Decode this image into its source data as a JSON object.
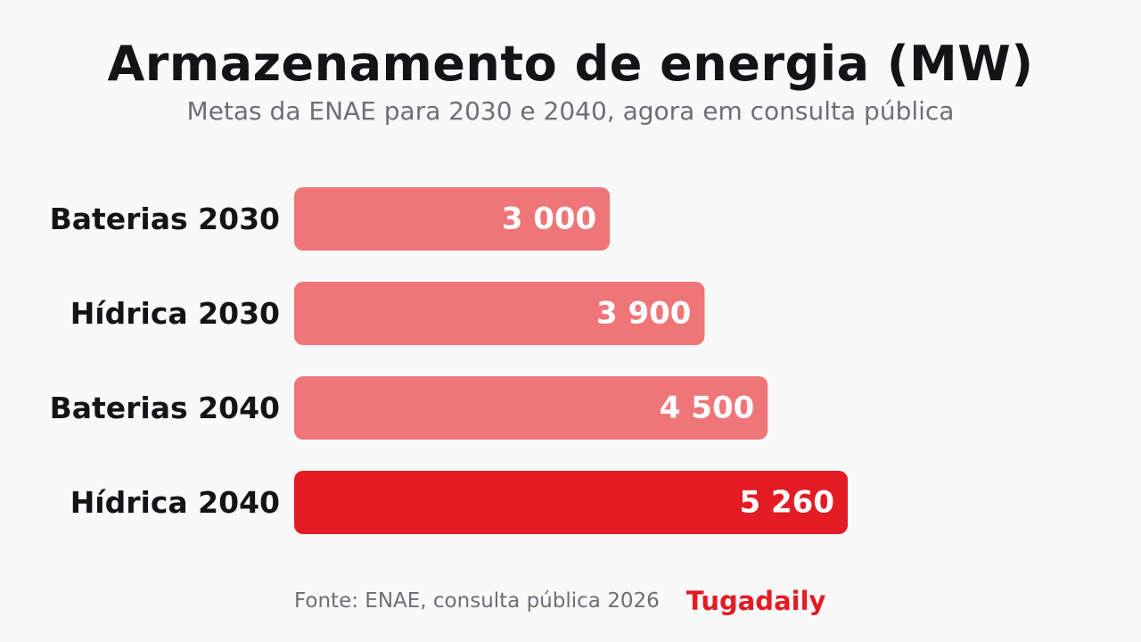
{
  "header": {
    "title": "Armazenamento de energia (MW)",
    "subtitle": "Metas da ENAE para 2030 e 2040, agora em consulta pública"
  },
  "chart_data": {
    "type": "bar",
    "orientation": "horizontal",
    "title": "Armazenamento de energia (MW)",
    "subtitle": "Metas da ENAE para 2030 e 2040, agora em consulta pública",
    "categories": [
      "Baterias 2030",
      "Hídrica 2030",
      "Baterias 2040",
      "Hídrica 2040"
    ],
    "values": [
      3000,
      3900,
      4500,
      5260
    ],
    "value_labels": [
      "3 000",
      "3 900",
      "4 500",
      "5 260"
    ],
    "xlim": [
      0,
      5260
    ],
    "grid": false,
    "legend": "none",
    "highlight_index": 3,
    "colors": {
      "bar": "#ee7679",
      "highlight": "#e31b23",
      "value_label": "#ffffff",
      "category_label": "#141418"
    }
  },
  "footer": {
    "source": "Fonte: ENAE, consulta pública 2026",
    "brand": "Tugadaily",
    "brand_color": "#e31b23"
  }
}
